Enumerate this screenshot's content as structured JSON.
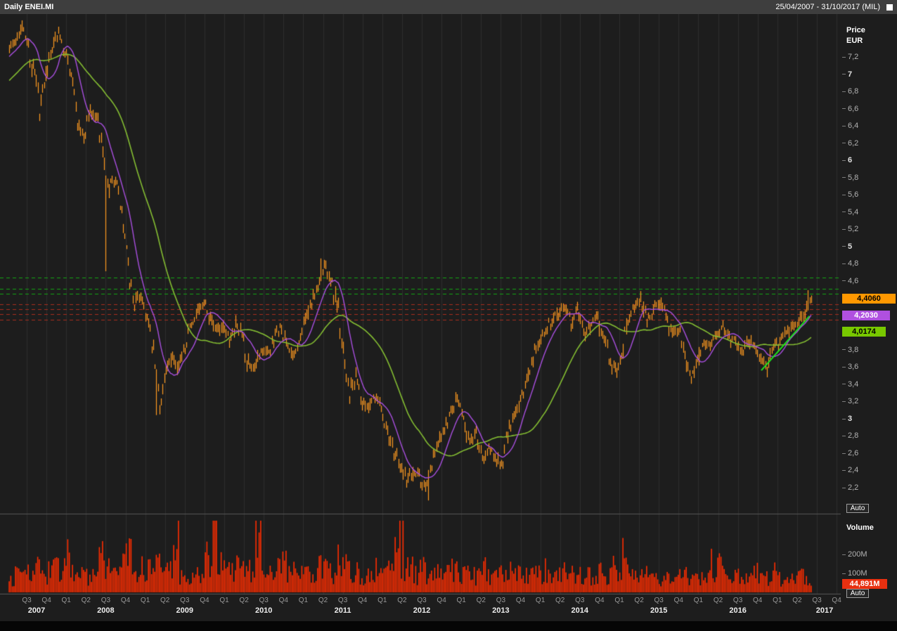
{
  "header": {
    "title": "Daily ENEI.MI",
    "range": "25/04/2007 - 31/10/2017 (MIL)"
  },
  "price_pane": {
    "axis_title_line1": "Price",
    "axis_title_line2": "EUR",
    "tick_labels": [
      "7,2",
      "7",
      "6,8",
      "6,6",
      "6,4",
      "6,2",
      "6",
      "5,8",
      "5,6",
      "5,4",
      "5,2",
      "5",
      "4,8",
      "4,6",
      "3,8",
      "3,6",
      "3,4",
      "3,2",
      "3",
      "2,8",
      "2,6",
      "2,4",
      "2,2"
    ],
    "last_price_label": "4,4060",
    "ma_fast_label": "4,2030",
    "ma_slow_label": "4,0174",
    "auto_label": "Auto"
  },
  "volume_pane": {
    "title": "Volume",
    "tick_labels": [
      "200M",
      "100M"
    ],
    "last_volume_label": "44,891M",
    "auto_label": "Auto"
  },
  "x_axis": {
    "quarter_labels": [
      "Q3",
      "Q4",
      "Q1",
      "Q2",
      "Q3",
      "Q4",
      "Q1",
      "Q2",
      "Q3",
      "Q4",
      "Q1",
      "Q2",
      "Q3",
      "Q4",
      "Q1",
      "Q2",
      "Q3",
      "Q4",
      "Q1",
      "Q2",
      "Q3",
      "Q4",
      "Q1",
      "Q2",
      "Q3",
      "Q4",
      "Q1",
      "Q2",
      "Q3",
      "Q4",
      "Q1",
      "Q2",
      "Q3",
      "Q4",
      "Q1",
      "Q2",
      "Q3",
      "Q4",
      "Q1",
      "Q2",
      "Q3",
      "Q4"
    ],
    "year_labels": [
      "2007",
      "2008",
      "2009",
      "2010",
      "2011",
      "2012",
      "2013",
      "2014",
      "2015",
      "2016",
      "2017"
    ]
  },
  "chart_data": {
    "type": "candlestick+volume",
    "symbol": "ENEI.MI",
    "interval": "Daily",
    "start": "2007-04",
    "end": "2017-10",
    "price_unit": "EUR",
    "ylim": [
      2.05,
      7.66
    ],
    "price_tick_step": 0.2,
    "last_price": 4.406,
    "ma_fast_last": 4.203,
    "ma_slow_last": 4.0174,
    "monthly_close": [
      7.35,
      7.58,
      7.4,
      7.05,
      6.62,
      6.95,
      7.28,
      7.48,
      7.3,
      6.95,
      6.42,
      6.28,
      6.55,
      6.5,
      6.1,
      5.72,
      5.78,
      5.4,
      4.68,
      4.36,
      4.45,
      4.18,
      3.76,
      3.18,
      3.55,
      3.72,
      3.65,
      3.85,
      4.1,
      4.22,
      4.35,
      4.15,
      4.05,
      4.08,
      3.92,
      4.1,
      4.0,
      3.62,
      3.56,
      3.8,
      3.76,
      3.9,
      4.05,
      3.86,
      3.74,
      3.95,
      4.15,
      4.32,
      4.55,
      4.78,
      4.62,
      4.35,
      3.68,
      3.32,
      3.5,
      3.22,
      3.14,
      3.26,
      3.12,
      2.82,
      2.64,
      2.44,
      2.3,
      2.4,
      2.34,
      2.2,
      2.46,
      2.7,
      2.9,
      3.1,
      3.24,
      3.05,
      2.76,
      2.86,
      2.56,
      2.66,
      2.56,
      2.46,
      2.8,
      3.1,
      3.2,
      3.45,
      3.7,
      3.95,
      4.05,
      4.15,
      4.25,
      4.32,
      4.12,
      4.28,
      3.98,
      4.08,
      4.25,
      4.0,
      3.7,
      3.56,
      3.82,
      4.12,
      4.32,
      4.42,
      4.15,
      4.3,
      4.35,
      4.18,
      3.98,
      4.06,
      3.74,
      3.46,
      3.76,
      3.9,
      3.84,
      4.0,
      4.06,
      3.95,
      3.9,
      3.8,
      3.9,
      3.86,
      3.74,
      3.6,
      3.8,
      3.92,
      4.0,
      4.06,
      4.12,
      4.26,
      4.41
    ],
    "monthly_volume_mln": [
      90,
      170,
      120,
      100,
      135,
      95,
      110,
      150,
      85,
      140,
      115,
      100,
      90,
      95,
      205,
      160,
      90,
      120,
      175,
      190,
      100,
      150,
      130,
      185,
      140,
      120,
      170,
      95,
      100,
      110,
      120,
      200,
      380,
      180,
      120,
      110,
      160,
      140,
      120,
      280,
      100,
      110,
      130,
      175,
      120,
      120,
      100,
      95,
      110,
      150,
      130,
      120,
      165,
      140,
      100,
      110,
      95,
      100,
      95,
      110,
      120,
      290,
      160,
      130,
      95,
      140,
      110,
      100,
      95,
      110,
      150,
      120,
      100,
      95,
      110,
      95,
      85,
      95,
      100,
      110,
      95,
      100,
      95,
      110,
      120,
      95,
      90,
      140,
      85,
      95,
      110,
      95,
      100,
      110,
      95,
      100,
      95,
      225,
      120,
      100,
      110,
      90,
      95,
      85,
      95,
      100,
      110,
      95,
      85,
      95,
      80,
      95,
      160,
      85,
      80,
      90,
      85,
      95,
      85,
      95,
      80,
      85,
      80,
      80,
      75,
      85,
      60
    ],
    "wick_extremes": [
      {
        "m": 15,
        "lo": 4.72
      },
      {
        "m": 23,
        "lo": 3.05
      },
      {
        "m": 49,
        "hi": 4.87
      },
      {
        "m": 66,
        "lo": 2.06
      },
      {
        "m": 126,
        "hi": 4.5
      }
    ],
    "green_dashed_levels": [
      4.65,
      4.52,
      4.46
    ],
    "red_dashed_levels": [
      4.34,
      4.28,
      4.22,
      4.16
    ],
    "trendline": {
      "from_month": 119,
      "from_price": 3.57,
      "to_month": 126.6,
      "to_price": 4.2
    },
    "volume_ticks_mln": [
      200,
      100
    ],
    "colors": {
      "price_bars": "#ff9a20",
      "ma_fast": "#a94fe0",
      "ma_slow": "#84bd32",
      "volume_bars": "#ff2d00",
      "trendline": "#1ee61e",
      "green_dashed": "#12a512",
      "red_dashed": "#aa2d1d",
      "price_badge_bg": "#ff9800",
      "ma_fast_badge_bg": "#b050e0",
      "ma_slow_badge_bg": "#78c800",
      "volume_badge_bg": "#e83010"
    }
  }
}
